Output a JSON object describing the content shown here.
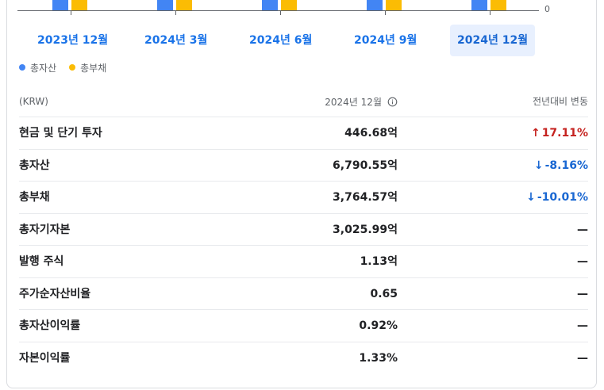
{
  "chart": {
    "zero_label": "0",
    "legend": [
      {
        "label": "총자산",
        "color": "#4285f4"
      },
      {
        "label": "총부채",
        "color": "#fbbc04"
      }
    ]
  },
  "periods": [
    {
      "label": "2023년 12월",
      "selected": false
    },
    {
      "label": "2024년 3월",
      "selected": false
    },
    {
      "label": "2024년 6월",
      "selected": false
    },
    {
      "label": "2024년 9월",
      "selected": false
    },
    {
      "label": "2024년 12월",
      "selected": true
    }
  ],
  "table": {
    "header": {
      "unit": "(KRW)",
      "period": "2024년 12월",
      "change": "전년대비 변동"
    },
    "rows": [
      {
        "label": "현금 및 단기 투자",
        "value": "446.68억",
        "change": "17.11%",
        "direction": "up",
        "arrow": "↑"
      },
      {
        "label": "총자산",
        "value": "6,790.55억",
        "change": "-8.16%",
        "direction": "down",
        "arrow": "↓"
      },
      {
        "label": "총부채",
        "value": "3,764.57억",
        "change": "-10.01%",
        "direction": "down",
        "arrow": "↓"
      },
      {
        "label": "총자기자본",
        "value": "3,025.99억",
        "change": "—",
        "direction": "none",
        "arrow": ""
      },
      {
        "label": "발행 주식",
        "value": "1.13억",
        "change": "—",
        "direction": "none",
        "arrow": ""
      },
      {
        "label": "주가순자산비율",
        "value": "0.65",
        "change": "—",
        "direction": "none",
        "arrow": ""
      },
      {
        "label": "총자산이익률",
        "value": "0.92%",
        "change": "—",
        "direction": "none",
        "arrow": ""
      },
      {
        "label": "자본이익률",
        "value": "1.33%",
        "change": "—",
        "direction": "none",
        "arrow": ""
      }
    ]
  },
  "colors": {
    "up": "#c5221f",
    "down": "#1967d2",
    "accent": "#1a73e8"
  }
}
